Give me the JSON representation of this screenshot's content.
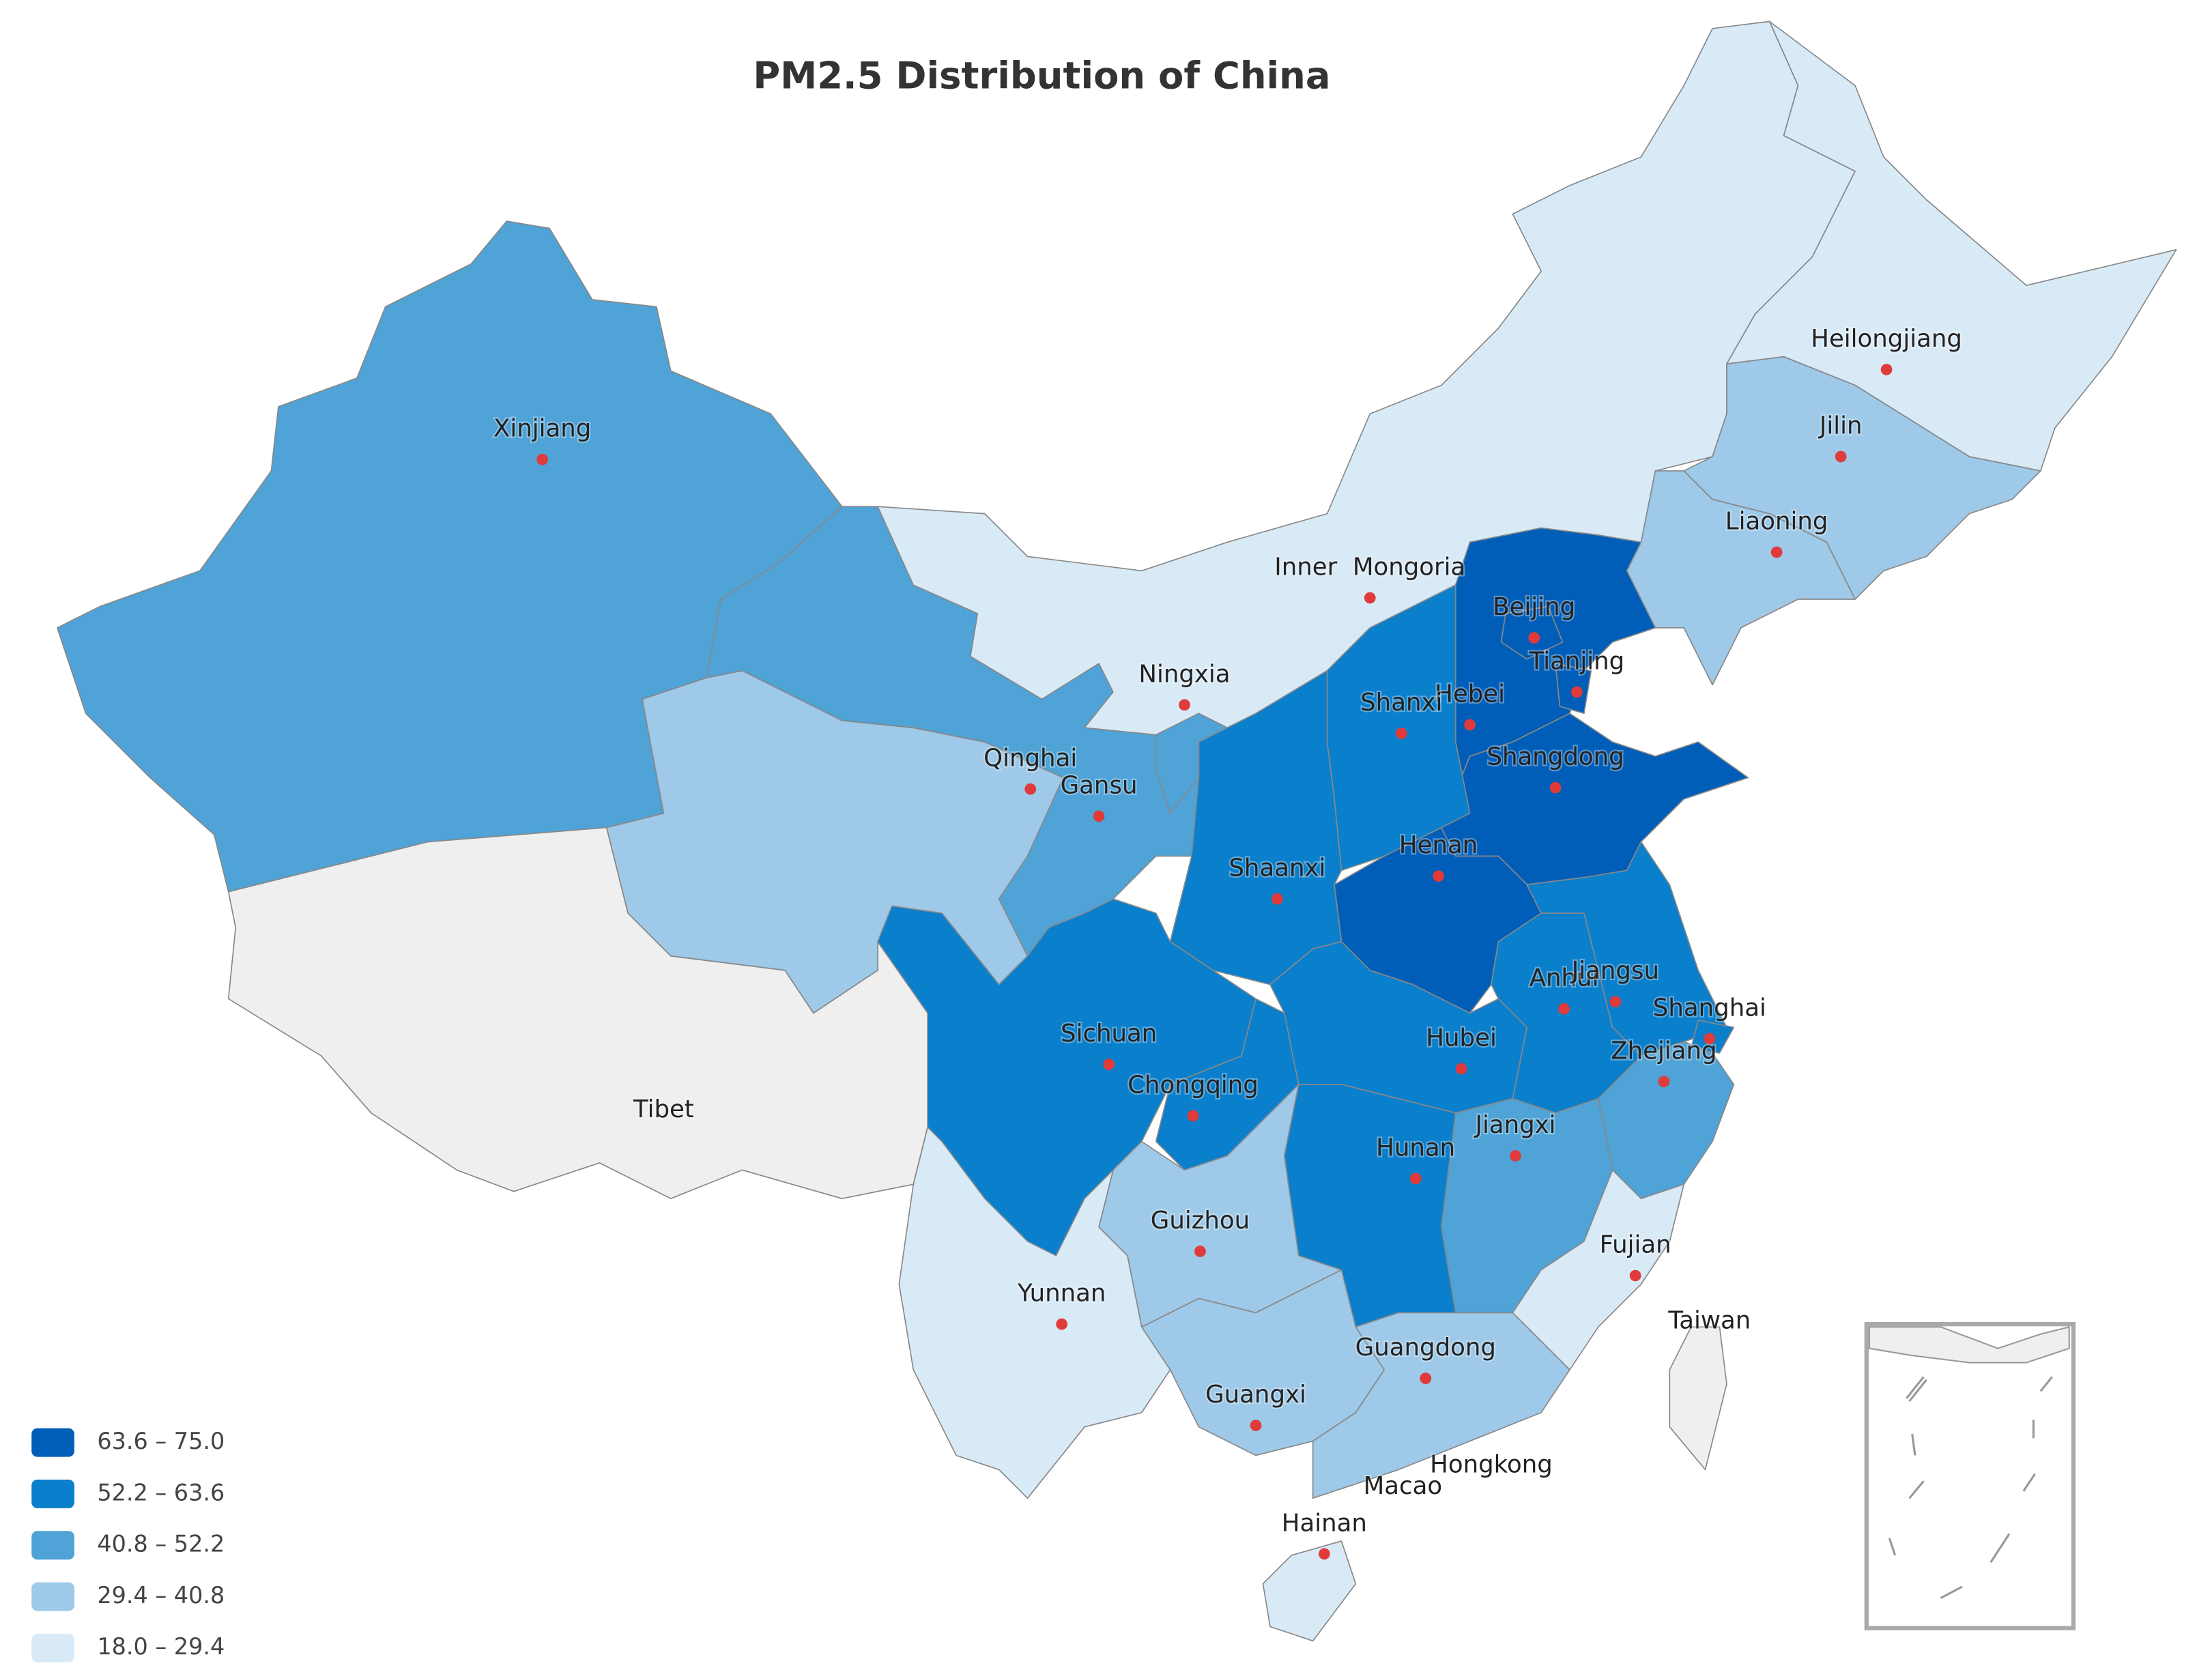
{
  "chart_data": {
    "type": "map",
    "title": "PM2.5 Distribution of China",
    "no_data_color": "#efefef",
    "legend": {
      "position": "bottom-left",
      "items": [
        {
          "label": "63.6 – 75.0",
          "color": "#005eb8"
        },
        {
          "label": "52.2 – 63.6",
          "color": "#0a7fcc"
        },
        {
          "label": "40.8 – 52.2",
          "color": "#4fa3d7"
        },
        {
          "label": "29.4 – 40.8",
          "color": "#9ec9e8"
        },
        {
          "label": "18.0 – 29.4",
          "color": "#d9eaf7"
        }
      ]
    },
    "regions": [
      {
        "name": "Xinjiang",
        "color": "#4fa3d7"
      },
      {
        "name": "Tibet",
        "color": "#efefef"
      },
      {
        "name": "Qinghai",
        "color": "#9ec9e8"
      },
      {
        "name": "Gansu",
        "color": "#4fa3d7"
      },
      {
        "name": "Inner  Mongoria",
        "color": "#d9eaf7"
      },
      {
        "name": "Heilongjiang",
        "color": "#d9eaf7"
      },
      {
        "name": "Jilin",
        "color": "#9ec9e8"
      },
      {
        "name": "Liaoning",
        "color": "#9ec9e8"
      },
      {
        "name": "Hebei",
        "color": "#005eb8"
      },
      {
        "name": "Beijing",
        "color": "#005eb8"
      },
      {
        "name": "Tianjing",
        "color": "#005eb8"
      },
      {
        "name": "Shangdong",
        "color": "#005eb8"
      },
      {
        "name": "Shanxi",
        "color": "#0a7fcc"
      },
      {
        "name": "Henan",
        "color": "#005eb8"
      },
      {
        "name": "Shaanxi",
        "color": "#0a7fcc"
      },
      {
        "name": "Ningxia",
        "color": "#4fa3d7"
      },
      {
        "name": "Sichuan",
        "color": "#0a7fcc"
      },
      {
        "name": "Chongqing",
        "color": "#0a7fcc"
      },
      {
        "name": "Hubei",
        "color": "#0a7fcc"
      },
      {
        "name": "Anhui",
        "color": "#0a7fcc"
      },
      {
        "name": "Jiangsu",
        "color": "#0a7fcc"
      },
      {
        "name": "Shanghai",
        "color": "#0a7fcc"
      },
      {
        "name": "Zhejiang",
        "color": "#4fa3d7"
      },
      {
        "name": "Jiangxi",
        "color": "#4fa3d7"
      },
      {
        "name": "Hunan",
        "color": "#0a7fcc"
      },
      {
        "name": "Fujian",
        "color": "#d9eaf7"
      },
      {
        "name": "Guizhou",
        "color": "#9ec9e8"
      },
      {
        "name": "Yunnan",
        "color": "#d9eaf7"
      },
      {
        "name": "Guangxi",
        "color": "#9ec9e8"
      },
      {
        "name": "Guangdong",
        "color": "#9ec9e8"
      },
      {
        "name": "Hainan",
        "color": "#d9eaf7"
      },
      {
        "name": "Taiwan",
        "color": "#efefef"
      },
      {
        "name": "Hongkong",
        "color": "#9ec9e8"
      },
      {
        "name": "Macao",
        "color": "#9ec9e8"
      }
    ]
  }
}
